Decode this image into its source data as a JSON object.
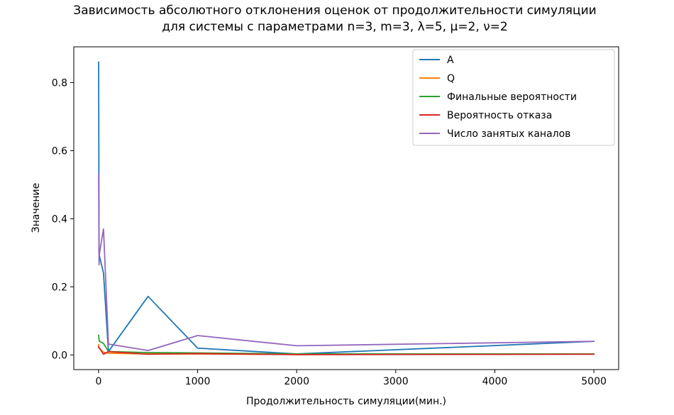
{
  "chart_data": {
    "type": "line",
    "title": [
      "Зависимость абсолютного отклонения оценок от продолжительности симуляции",
      "для системы с параметрами n=3, m=3, λ=5, μ=2, ν=2"
    ],
    "xlabel": "Продолжительность симуляции(мин.)",
    "ylabel": "Значение",
    "xlim": [
      -250,
      5250
    ],
    "ylim": [
      -0.043,
      0.905
    ],
    "xticks": [
      0,
      1000,
      2000,
      3000,
      4000,
      5000
    ],
    "xtick_labels": [
      "0",
      "1000",
      "2000",
      "3000",
      "4000",
      "5000"
    ],
    "yticks": [
      0.0,
      0.2,
      0.4,
      0.6,
      0.8
    ],
    "ytick_labels": [
      "0.0",
      "0.2",
      "0.4",
      "0.6",
      "0.8"
    ],
    "grid": false,
    "legend_position": "top-right",
    "series": [
      {
        "name": "A",
        "color": "#1f77b4",
        "x": [
          1,
          5,
          10,
          50,
          100,
          500,
          1000,
          2000,
          5000
        ],
        "y": [
          0.86,
          0.3,
          0.29,
          0.24,
          0.01,
          0.172,
          0.02,
          0.003,
          0.04
        ]
      },
      {
        "name": "Q",
        "color": "#ff7f0e",
        "x": [
          1,
          5,
          10,
          50,
          100,
          500,
          1000,
          2000,
          5000
        ],
        "y": [
          0.03,
          0.02,
          0.018,
          0.008,
          0.005,
          0.003,
          0.003,
          0.001,
          0.003
        ]
      },
      {
        "name": "Финальные вероятности",
        "color": "#2ca02c",
        "x": [
          1,
          5,
          10,
          50,
          100,
          500,
          1000,
          2000,
          5000
        ],
        "y": [
          0.058,
          0.045,
          0.04,
          0.034,
          0.01,
          0.007,
          0.006,
          0.003,
          0.003
        ]
      },
      {
        "name": "Вероятность отказа",
        "color": "#d62728",
        "x": [
          1,
          5,
          10,
          50,
          100,
          500,
          1000,
          2000,
          5000
        ],
        "y": [
          0.025,
          0.02,
          0.02,
          0.002,
          0.01,
          0.002,
          0.004,
          0.001,
          0.002
        ]
      },
      {
        "name": "Число занятых каналов",
        "color": "#9467bd",
        "x": [
          1,
          5,
          10,
          50,
          100,
          500,
          1000,
          2000,
          5000
        ],
        "y": [
          0.53,
          0.265,
          0.3,
          0.37,
          0.032,
          0.013,
          0.057,
          0.027,
          0.04
        ]
      }
    ]
  }
}
